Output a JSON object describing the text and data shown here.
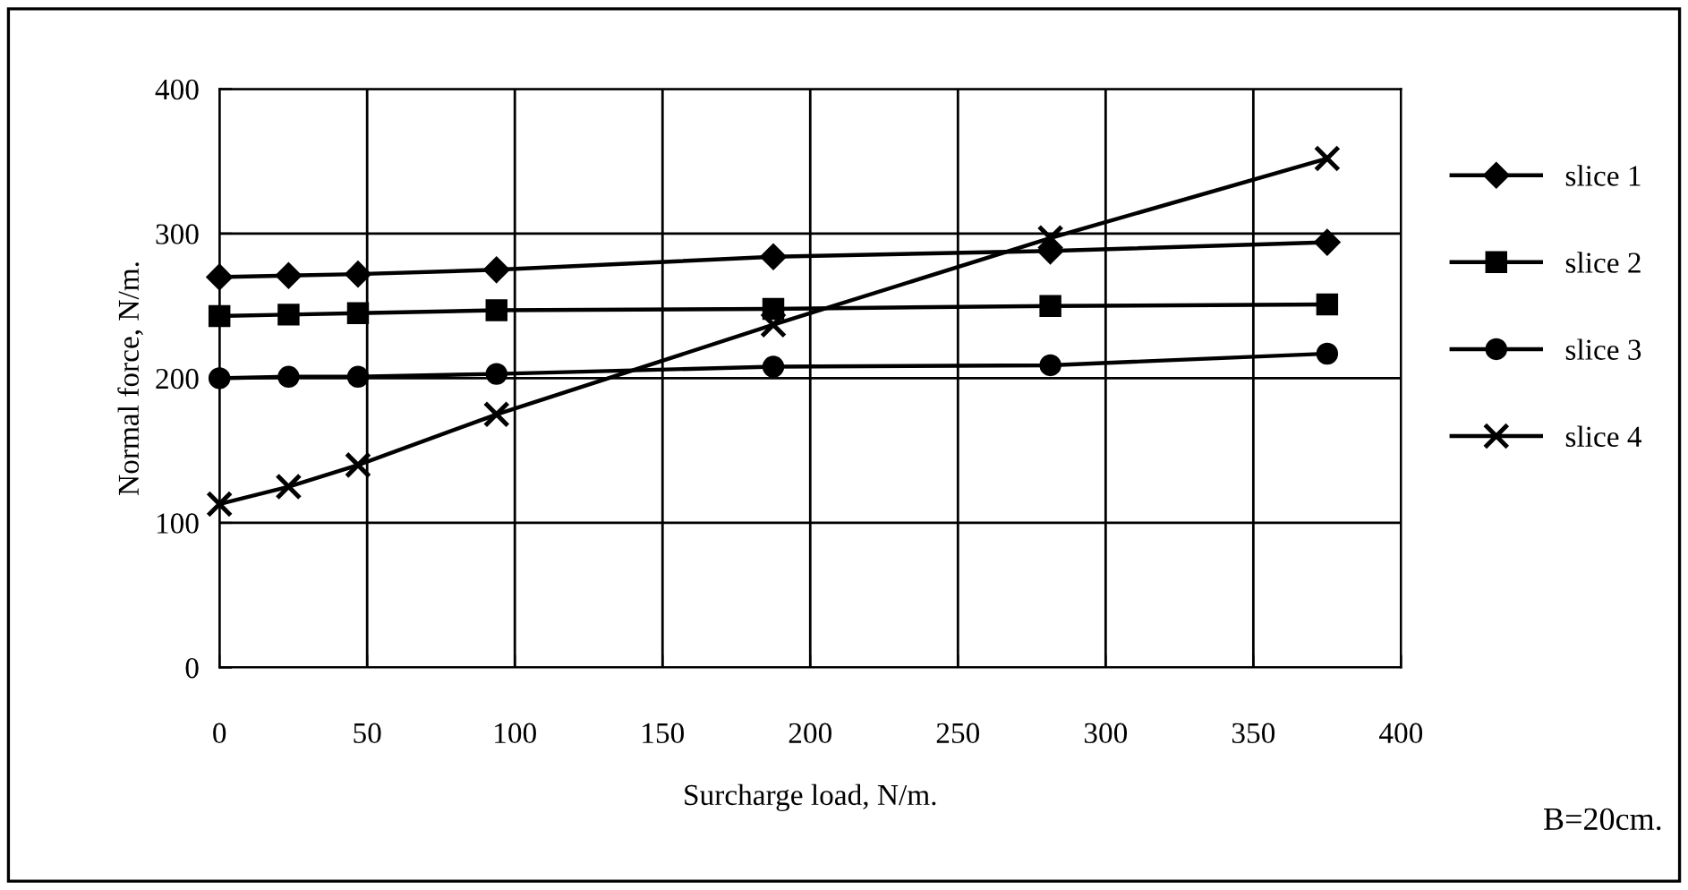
{
  "chart_data": {
    "type": "line",
    "xlabel": "Surcharge load, N/m.",
    "ylabel": "Normal force, N/m.",
    "annotations": [
      "B=20cm."
    ],
    "x": [
      0,
      23.4,
      46.9,
      93.8,
      187.5,
      281.3,
      375
    ],
    "series": [
      {
        "name": "slice 1",
        "color": "#000000",
        "marker": "diamond",
        "values": [
          270,
          271,
          272,
          275,
          284,
          288,
          294
        ]
      },
      {
        "name": "slice 2",
        "color": "#000000",
        "marker": "square",
        "values": [
          243,
          244,
          245,
          247,
          248,
          250,
          251
        ]
      },
      {
        "name": "slice 3",
        "color": "#000000",
        "marker": "circle",
        "values": [
          200,
          201,
          201,
          203,
          208,
          209,
          217
        ]
      },
      {
        "name": "slice 4",
        "color": "#000000",
        "marker": "cross",
        "values": [
          113,
          125,
          140,
          175,
          237,
          297,
          352
        ]
      }
    ],
    "xlim": [
      0,
      400
    ],
    "xticks": [
      0,
      50,
      100,
      150,
      200,
      250,
      300,
      350,
      400
    ],
    "ylim": [
      0,
      400
    ],
    "yticks": [
      0,
      100,
      200,
      300,
      400
    ],
    "grid": true,
    "legend": "right",
    "line_style": "solid"
  }
}
